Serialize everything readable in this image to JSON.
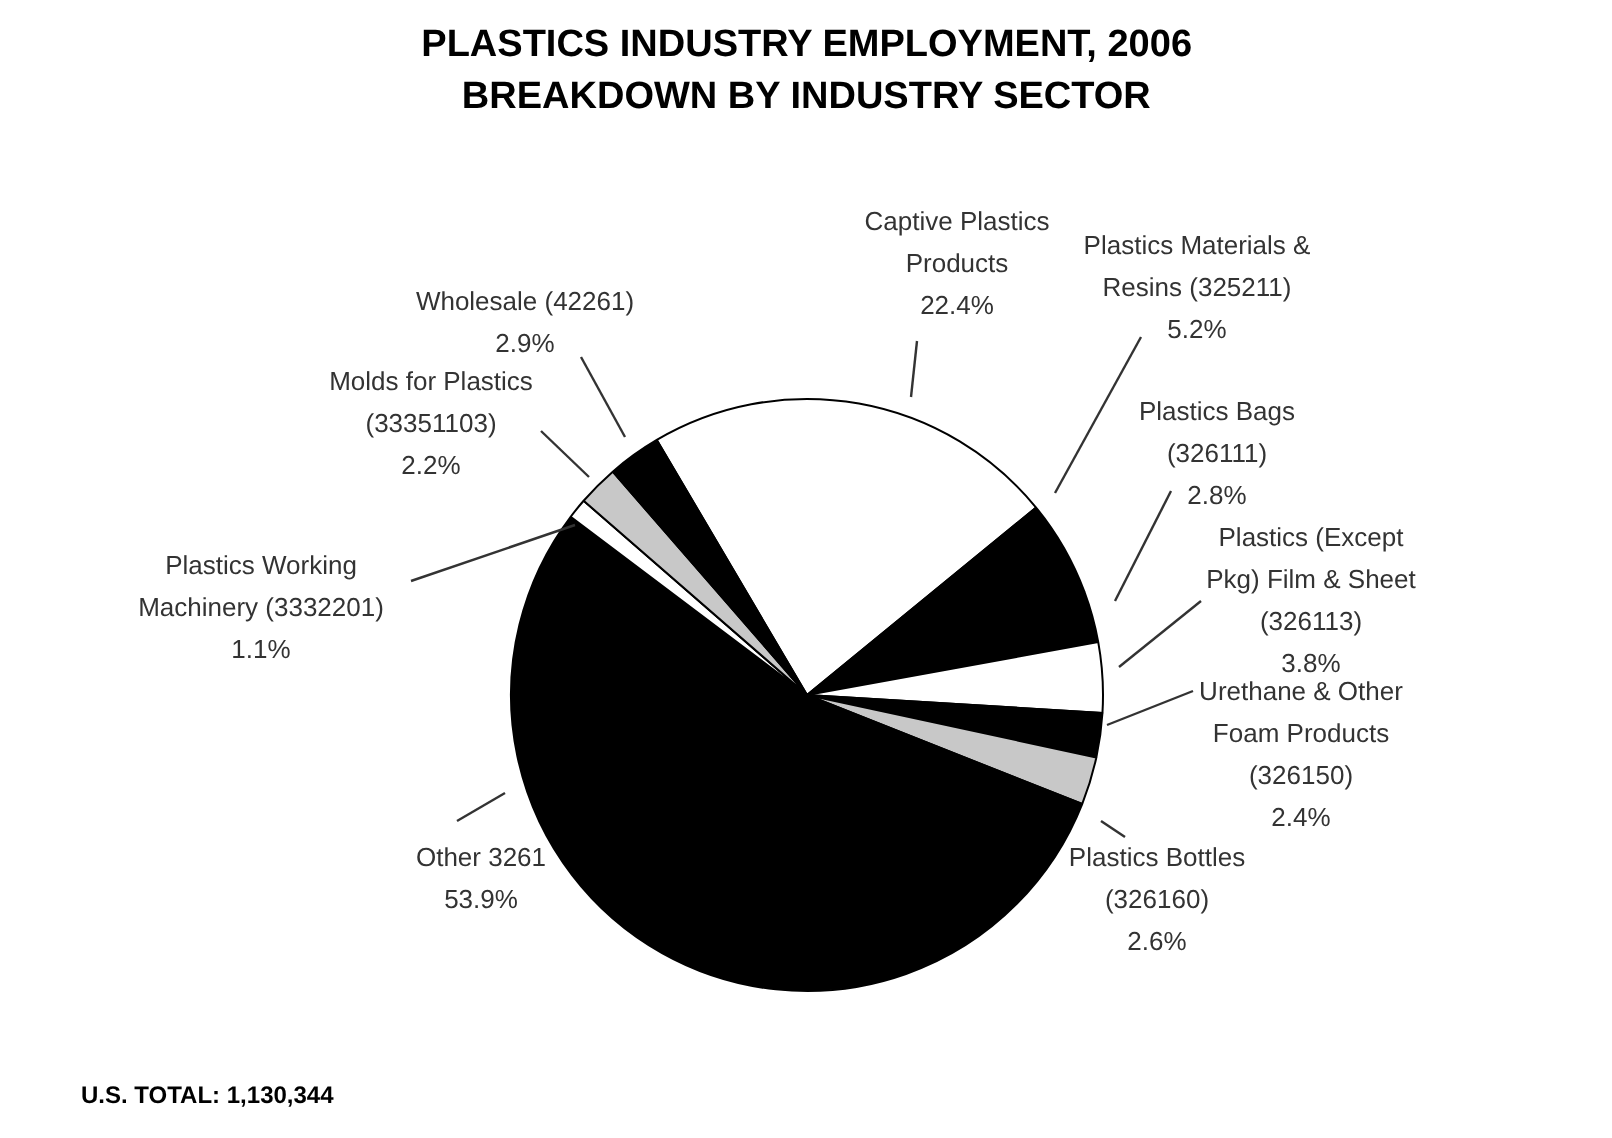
{
  "chart_data": {
    "type": "pie",
    "title": "PLASTICS INDUSTRY EMPLOYMENT, 2006",
    "subtitle": "BREAKDOWN BY INDUSTRY SECTOR",
    "categories": [
      "Captive Plastics Products",
      "Plastics Materials & Resins (325211)",
      "Plastics Bags (326111)",
      "Plastics (Except Pkg) Film & Sheet (326113)",
      "Urethane & Other Foam Products (326150)",
      "Plastics Bottles (326160)",
      "Other 3261",
      "Plastics Working Machinery (3332201)",
      "Molds for Plastics (33351103)",
      "Wholesale (42261)"
    ],
    "values": [
      22.4,
      5.2,
      2.8,
      3.8,
      2.4,
      2.6,
      53.9,
      1.1,
      2.2,
      2.9
    ],
    "value_labels": [
      "22.4%",
      "5.2%",
      "2.8%",
      "3.8%",
      "2.4%",
      "2.6%",
      "53.9%",
      "1.1%",
      "2.2%",
      "2.9%"
    ],
    "colors": [
      "#ffffff",
      "#000000",
      "#000000",
      "#ffffff",
      "#000000",
      "#c8c8c8",
      "#000000",
      "#ffffff",
      "#c8c8c8",
      "#000000"
    ],
    "annotations": [
      "U.S. TOTAL: 1,130,344"
    ]
  }
}
